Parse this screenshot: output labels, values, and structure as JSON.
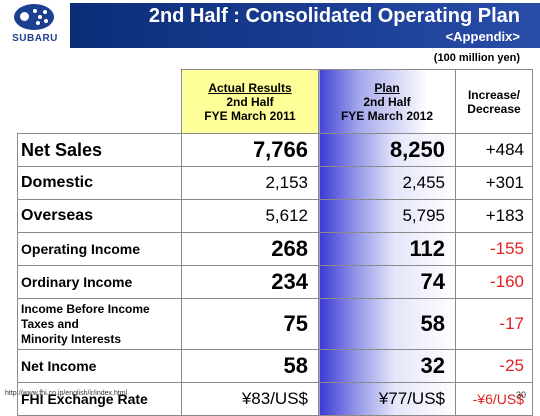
{
  "brand": {
    "logo_text": "SUBARU"
  },
  "header": {
    "title": "2nd Half : Consolidated Operating Plan",
    "subtitle": "<Appendix>"
  },
  "unit_note": "(100 million yen)",
  "columns": {
    "actual": {
      "line1": "Actual Results",
      "line2": "2nd Half",
      "line3": "FYE March 2011"
    },
    "plan": {
      "line1": "Plan",
      "line2": "2nd Half",
      "line3": "FYE March 2012"
    },
    "change": {
      "line1": "Increase/",
      "line2": "Decrease"
    }
  },
  "rows": [
    {
      "label": "Net Sales",
      "actual": "7,766",
      "plan": "8,250",
      "change": "+484"
    },
    {
      "label": "Domestic",
      "actual": "2,153",
      "plan": "2,455",
      "change": "+301"
    },
    {
      "label": "Overseas",
      "actual": "5,612",
      "plan": "5,795",
      "change": "+183"
    },
    {
      "label": "Operating Income",
      "actual": "268",
      "plan": "112",
      "change": "-155"
    },
    {
      "label": "Ordinary Income",
      "actual": "234",
      "plan": "74",
      "change": "-160"
    },
    {
      "label_lines": [
        "Income Before Income",
        "Taxes and",
        "Minority Interests"
      ],
      "actual": "75",
      "plan": "58",
      "change": "-17"
    },
    {
      "label": "Net Income",
      "actual": "58",
      "plan": "32",
      "change": "-25"
    },
    {
      "label": "FHI Exchange Rate",
      "actual": "¥83/US$",
      "plan": "¥77/US$",
      "change": "-¥6/US$"
    }
  ],
  "colors": {
    "header_blue": "#1c3f96",
    "negative": "#e02020",
    "actual_header_bg": "#ffff99"
  },
  "footer": {
    "url": "http://www.fhi.co.jp/english/ir/index.html",
    "page": "30"
  }
}
